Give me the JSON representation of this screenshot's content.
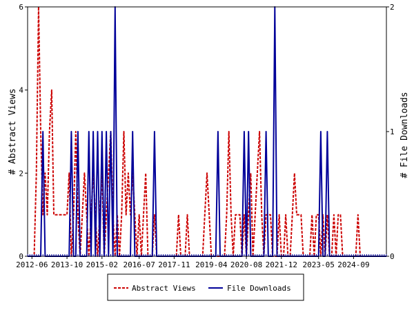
{
  "chart_data": {
    "type": "line",
    "ylabel": "# Abstract Views",
    "y2label": "# File Downloads",
    "ylim": [
      0,
      6
    ],
    "y2lim": [
      0,
      2
    ],
    "yticks": [
      "0",
      "2",
      "4",
      "6"
    ],
    "y2ticks": [
      "0",
      "1",
      "2"
    ],
    "x_range": [
      "2012-04",
      "2025-12"
    ],
    "xticks": [
      "2012-06",
      "2013-10",
      "2015-02",
      "2016-07",
      "2017-11",
      "2019-04",
      "2020-08",
      "2021-12",
      "2023-05",
      "2024-09"
    ],
    "legend_position": "bottom-center",
    "grid": false,
    "series": [
      {
        "name": "Abstract Views",
        "axis": "left",
        "color": "#cc0000",
        "style": "dashed",
        "points": [
          [
            "2012-04",
            0
          ],
          [
            "2012-07",
            0
          ],
          [
            "2012-08",
            2
          ],
          [
            "2012-09",
            6
          ],
          [
            "2012-10",
            3
          ],
          [
            "2012-11",
            1
          ],
          [
            "2012-12",
            2
          ],
          [
            "2013-01",
            1
          ],
          [
            "2013-02",
            3
          ],
          [
            "2013-03",
            4
          ],
          [
            "2013-04",
            1
          ],
          [
            "2013-05",
            1
          ],
          [
            "2013-06",
            1
          ],
          [
            "2013-07",
            1
          ],
          [
            "2013-08",
            1
          ],
          [
            "2013-09",
            1
          ],
          [
            "2013-10",
            1
          ],
          [
            "2013-11",
            2
          ],
          [
            "2013-12",
            0
          ],
          [
            "2014-01",
            1
          ],
          [
            "2014-02",
            3
          ],
          [
            "2014-03",
            1
          ],
          [
            "2014-04",
            0
          ],
          [
            "2014-05",
            1
          ],
          [
            "2014-06",
            2
          ],
          [
            "2014-07",
            1
          ],
          [
            "2014-08",
            0
          ],
          [
            "2014-09",
            1
          ],
          [
            "2014-10",
            2
          ],
          [
            "2014-11",
            1
          ],
          [
            "2014-12",
            0
          ],
          [
            "2015-01",
            1
          ],
          [
            "2015-02",
            2
          ],
          [
            "2015-03",
            0
          ],
          [
            "2015-04",
            1
          ],
          [
            "2015-05",
            2
          ],
          [
            "2015-06",
            3
          ],
          [
            "2015-07",
            1
          ],
          [
            "2015-08",
            0
          ],
          [
            "2015-09",
            1
          ],
          [
            "2015-10",
            0
          ],
          [
            "2015-11",
            1
          ],
          [
            "2015-12",
            3
          ],
          [
            "2016-01",
            1
          ],
          [
            "2016-02",
            2
          ],
          [
            "2016-03",
            1
          ],
          [
            "2016-04",
            2
          ],
          [
            "2016-05",
            1
          ],
          [
            "2016-06",
            0
          ],
          [
            "2016-07",
            1
          ],
          [
            "2016-08",
            0
          ],
          [
            "2016-09",
            1
          ],
          [
            "2016-10",
            2
          ],
          [
            "2016-11",
            0
          ],
          [
            "2016-12",
            0
          ],
          [
            "2017-01",
            0
          ],
          [
            "2017-02",
            1
          ],
          [
            "2017-03",
            0
          ],
          [
            "2017-04",
            0
          ],
          [
            "2017-11",
            0
          ],
          [
            "2017-12",
            0
          ],
          [
            "2018-01",
            1
          ],
          [
            "2018-02",
            0
          ],
          [
            "2018-03",
            0
          ],
          [
            "2018-04",
            0
          ],
          [
            "2018-05",
            1
          ],
          [
            "2018-06",
            0
          ],
          [
            "2018-12",
            0
          ],
          [
            "2019-01",
            1
          ],
          [
            "2019-02",
            2
          ],
          [
            "2019-03",
            1
          ],
          [
            "2019-04",
            0
          ],
          [
            "2019-10",
            0
          ],
          [
            "2019-11",
            1
          ],
          [
            "2019-12",
            3
          ],
          [
            "2020-01",
            1
          ],
          [
            "2020-02",
            0
          ],
          [
            "2020-03",
            1
          ],
          [
            "2020-04",
            1
          ],
          [
            "2020-05",
            1
          ],
          [
            "2020-06",
            0
          ],
          [
            "2020-07",
            1
          ],
          [
            "2020-08",
            0
          ],
          [
            "2020-09",
            1
          ],
          [
            "2020-10",
            2
          ],
          [
            "2020-11",
            0
          ],
          [
            "2020-12",
            1
          ],
          [
            "2021-01",
            2
          ],
          [
            "2021-02",
            3
          ],
          [
            "2021-03",
            1
          ],
          [
            "2021-04",
            0
          ],
          [
            "2021-05",
            1
          ],
          [
            "2021-06",
            1
          ],
          [
            "2021-07",
            1
          ],
          [
            "2021-08",
            0
          ],
          [
            "2021-10",
            0
          ],
          [
            "2021-11",
            1
          ],
          [
            "2021-12",
            0
          ],
          [
            "2022-01",
            0
          ],
          [
            "2022-02",
            1
          ],
          [
            "2022-03",
            0
          ],
          [
            "2022-04",
            0
          ],
          [
            "2022-05",
            1
          ],
          [
            "2022-06",
            2
          ],
          [
            "2022-07",
            1
          ],
          [
            "2022-08",
            1
          ],
          [
            "2022-09",
            1
          ],
          [
            "2022-10",
            0
          ],
          [
            "2023-01",
            0
          ],
          [
            "2023-02",
            1
          ],
          [
            "2023-03",
            0
          ],
          [
            "2023-04",
            1
          ],
          [
            "2023-05",
            1
          ],
          [
            "2023-06",
            0
          ],
          [
            "2023-07",
            1
          ],
          [
            "2023-08",
            0
          ],
          [
            "2023-09",
            1
          ],
          [
            "2023-10",
            0
          ],
          [
            "2023-11",
            0
          ],
          [
            "2023-12",
            1
          ],
          [
            "2024-01",
            0
          ],
          [
            "2024-02",
            1
          ],
          [
            "2024-03",
            1
          ],
          [
            "2024-04",
            0
          ],
          [
            "2024-10",
            0
          ],
          [
            "2024-11",
            1
          ],
          [
            "2024-12",
            0
          ],
          [
            "2025-12",
            0
          ]
        ]
      },
      {
        "name": "File Downloads",
        "axis": "right",
        "color": "#000099",
        "style": "solid",
        "points": [
          [
            "2012-04",
            0
          ],
          [
            "2012-10",
            0
          ],
          [
            "2012-11",
            1
          ],
          [
            "2012-12",
            0
          ],
          [
            "2013-11",
            0
          ],
          [
            "2013-12",
            1
          ],
          [
            "2014-01",
            0
          ],
          [
            "2014-02",
            0
          ],
          [
            "2014-03",
            1
          ],
          [
            "2014-04",
            0
          ],
          [
            "2014-07",
            0
          ],
          [
            "2014-08",
            1
          ],
          [
            "2014-09",
            0
          ],
          [
            "2014-10",
            1
          ],
          [
            "2014-11",
            0
          ],
          [
            "2014-12",
            1
          ],
          [
            "2015-01",
            0
          ],
          [
            "2015-02",
            1
          ],
          [
            "2015-03",
            0
          ],
          [
            "2015-04",
            1
          ],
          [
            "2015-05",
            0
          ],
          [
            "2015-06",
            1
          ],
          [
            "2015-07",
            0
          ],
          [
            "2015-08",
            2
          ],
          [
            "2015-09",
            0
          ],
          [
            "2015-10",
            0
          ],
          [
            "2015-11",
            0
          ],
          [
            "2016-03",
            0
          ],
          [
            "2016-04",
            1
          ],
          [
            "2016-05",
            0
          ],
          [
            "2016-06",
            0
          ],
          [
            "2017-01",
            0
          ],
          [
            "2017-02",
            1
          ],
          [
            "2017-03",
            0
          ],
          [
            "2019-06",
            0
          ],
          [
            "2019-07",
            1
          ],
          [
            "2019-08",
            0
          ],
          [
            "2020-06",
            0
          ],
          [
            "2020-07",
            1
          ],
          [
            "2020-08",
            0
          ],
          [
            "2020-09",
            1
          ],
          [
            "2020-10",
            0
          ],
          [
            "2021-04",
            0
          ],
          [
            "2021-05",
            1
          ],
          [
            "2021-06",
            0
          ],
          [
            "2021-08",
            0
          ],
          [
            "2021-09",
            2
          ],
          [
            "2021-10",
            0
          ],
          [
            "2023-05",
            0
          ],
          [
            "2023-06",
            1
          ],
          [
            "2023-07",
            0
          ],
          [
            "2023-08",
            0
          ],
          [
            "2023-09",
            1
          ],
          [
            "2023-10",
            0
          ],
          [
            "2025-12",
            0
          ]
        ]
      }
    ]
  }
}
